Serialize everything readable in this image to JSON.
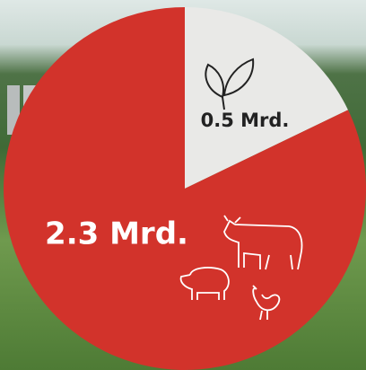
{
  "chart_data": {
    "type": "pie",
    "categories": [
      null,
      null
    ],
    "values": [
      0.5,
      2.3
    ],
    "value_labels": [
      "0.5 Mrd.",
      "2.3 Mrd."
    ],
    "colors": [
      "#e9e9e7",
      "#d2332b"
    ]
  }
}
